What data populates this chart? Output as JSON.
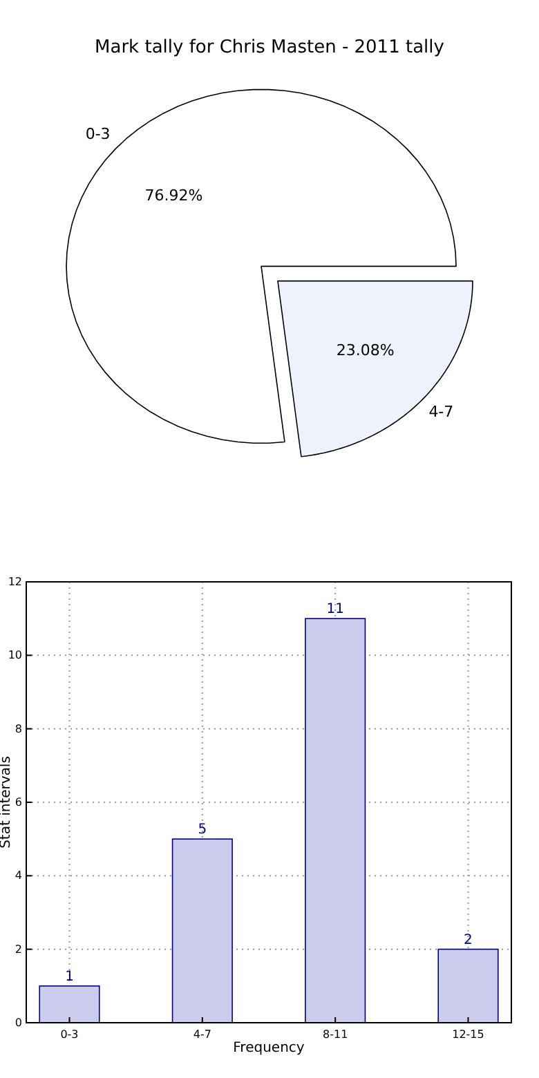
{
  "chart_data": [
    {
      "type": "pie",
      "title": "Mark tally for Chris Masten - 2011 tally",
      "categories": [
        "0-3",
        "4-7"
      ],
      "values": [
        76.92,
        23.08
      ],
      "colors": [
        "#ffffff",
        "#eef2fd"
      ],
      "value_labels": [
        "76.92%",
        "23.08%"
      ]
    },
    {
      "type": "bar",
      "xlabel": "Frequency",
      "ylabel": "Stat intervals",
      "categories": [
        "0-3",
        "4-7",
        "8-11",
        "12-15"
      ],
      "values": [
        1,
        5,
        11,
        2
      ],
      "color": "#ccccee",
      "ylim": [
        0,
        12
      ],
      "yticks": [
        0,
        2,
        4,
        6,
        8,
        10,
        12
      ],
      "grid": true,
      "data_labels": true
    }
  ]
}
